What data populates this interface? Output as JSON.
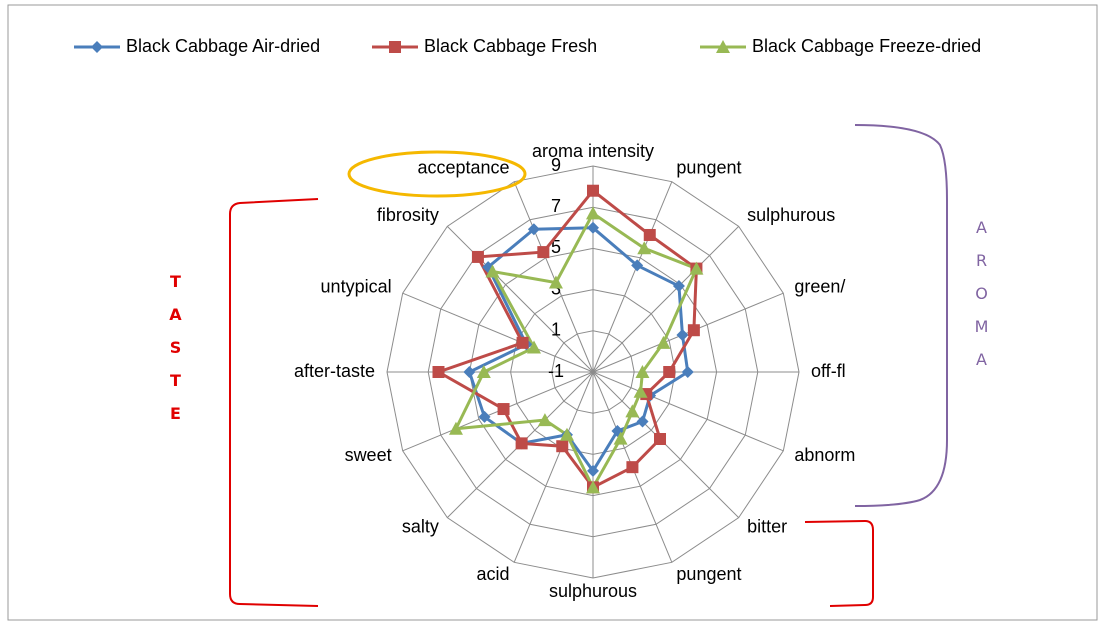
{
  "chart_data": {
    "type": "radar",
    "categories": [
      "aroma intensity",
      "pungent",
      "sulphurous",
      "green/",
      "off-fl",
      "abnorm",
      "bitter",
      "pungent",
      "sulphurous",
      "acid",
      "salty",
      "sweet",
      "after-taste",
      "untypical",
      "fibrosity",
      "acceptance"
    ],
    "series": [
      {
        "name": "Black Cabbage Air-dried",
        "color": "#4a7ebb",
        "marker": "diamond",
        "values": [
          6.0,
          4.6,
          4.9,
          3.7,
          3.6,
          2.0,
          2.4,
          2.1,
          3.8,
          2.3,
          3.9,
          4.7,
          5.0,
          2.5,
          6.2,
          6.5
        ]
      },
      {
        "name": "Black Cabbage Fresh",
        "color": "#be4b48",
        "marker": "square",
        "values": [
          7.8,
          6.2,
          6.1,
          4.3,
          2.7,
          1.8,
          3.6,
          4.0,
          4.6,
          2.9,
          3.9,
          3.7,
          6.5,
          2.7,
          6.9,
          5.3
        ]
      },
      {
        "name": "Black Cabbage Freeze-dried",
        "color": "#98b954",
        "marker": "triangle",
        "values": [
          6.7,
          5.5,
          6.1,
          2.7,
          1.4,
          1.5,
          1.7,
          2.5,
          4.6,
          2.3,
          2.3,
          6.2,
          4.3,
          2.1,
          5.9,
          3.7
        ]
      }
    ],
    "ylim": [
      -1,
      9
    ],
    "yticks": [
      -1,
      1,
      3,
      5,
      7,
      9
    ],
    "grid": true,
    "legend": "top",
    "annotations": {
      "taste": "TASTE",
      "aroma": "AROMA"
    }
  }
}
